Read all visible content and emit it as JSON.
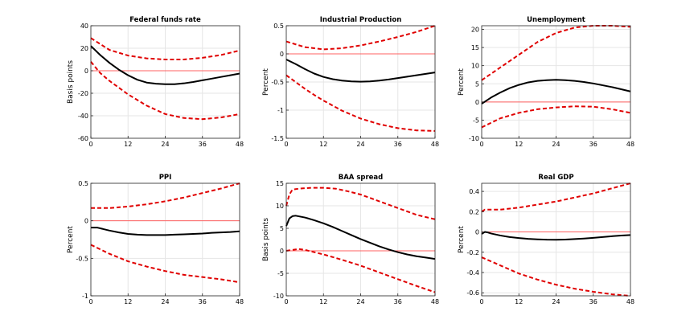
{
  "chart_data": [
    {
      "type": "line",
      "title": "Federal funds rate",
      "ylabel": "Basis points",
      "xlabel": "",
      "xlim": [
        0,
        48
      ],
      "xticks": [
        0,
        12,
        24,
        36,
        48
      ],
      "xtick_labels": [
        "0",
        "12",
        "24",
        "36",
        "48"
      ],
      "ylim": [
        -60,
        40
      ],
      "yticks": [
        -60,
        -40,
        -20,
        0,
        20,
        40
      ],
      "ytick_labels": [
        "-60",
        "-40",
        "-20",
        "0",
        "20",
        "40"
      ],
      "grid": true,
      "series": [
        {
          "name": "Upper band",
          "style": "dashed",
          "color": "#e00000",
          "x": [
            0,
            6,
            12,
            18,
            24,
            30,
            36,
            42,
            48
          ],
          "values": [
            29,
            18.5,
            13.5,
            11,
            10,
            10,
            11.5,
            14,
            18
          ]
        },
        {
          "name": "Response",
          "style": "solid",
          "color": "#000000",
          "x": [
            0,
            3,
            6,
            9,
            12,
            15,
            18,
            21,
            24,
            27,
            30,
            33,
            36,
            39,
            42,
            45,
            48
          ],
          "values": [
            22,
            14,
            7,
            1,
            -4,
            -8,
            -10.5,
            -11.5,
            -12,
            -12,
            -11.2,
            -10,
            -8.5,
            -7,
            -5.5,
            -4,
            -2.5
          ]
        },
        {
          "name": "Lower band",
          "style": "dashed",
          "color": "#e00000",
          "x": [
            0,
            3,
            6,
            9,
            12,
            18,
            24,
            30,
            36,
            42,
            48
          ],
          "values": [
            8,
            -2,
            -9,
            -15,
            -21,
            -31,
            -38.5,
            -42,
            -43,
            -41.5,
            -38.5
          ]
        },
        {
          "name": "Zero line",
          "style": "solid",
          "color": "#ff6060",
          "x": [
            0,
            48
          ],
          "values": [
            0,
            0
          ]
        }
      ]
    },
    {
      "type": "line",
      "title": "Industrial Production",
      "ylabel": "Percent",
      "xlabel": "",
      "xlim": [
        0,
        48
      ],
      "xticks": [
        0,
        12,
        24,
        36,
        48
      ],
      "xtick_labels": [
        "0",
        "12",
        "24",
        "36",
        "48"
      ],
      "ylim": [
        -1.5,
        0.5
      ],
      "yticks": [
        -1.5,
        -1,
        -0.5,
        0,
        0.5
      ],
      "ytick_labels": [
        "-1.5",
        "-1",
        "-0.5",
        "0",
        "0.5"
      ],
      "grid": true,
      "series": [
        {
          "name": "Upper band",
          "style": "dashed",
          "color": "#e00000",
          "x": [
            0,
            6,
            12,
            18,
            24,
            30,
            36,
            42,
            48
          ],
          "values": [
            0.22,
            0.12,
            0.08,
            0.1,
            0.15,
            0.22,
            0.3,
            0.39,
            0.5
          ]
        },
        {
          "name": "Response",
          "style": "solid",
          "color": "#000000",
          "x": [
            0,
            3,
            6,
            9,
            12,
            15,
            18,
            21,
            24,
            27,
            30,
            33,
            36,
            39,
            42,
            45,
            48
          ],
          "values": [
            -0.1,
            -0.18,
            -0.27,
            -0.35,
            -0.41,
            -0.45,
            -0.475,
            -0.49,
            -0.495,
            -0.49,
            -0.475,
            -0.455,
            -0.43,
            -0.405,
            -0.38,
            -0.355,
            -0.33
          ]
        },
        {
          "name": "Lower band",
          "style": "dashed",
          "color": "#e00000",
          "x": [
            0,
            3,
            6,
            9,
            12,
            18,
            24,
            30,
            36,
            42,
            48
          ],
          "values": [
            -0.38,
            -0.5,
            -0.62,
            -0.73,
            -0.83,
            -1.01,
            -1.15,
            -1.25,
            -1.32,
            -1.36,
            -1.37
          ]
        },
        {
          "name": "Zero line",
          "style": "solid",
          "color": "#ff6060",
          "x": [
            0,
            48
          ],
          "values": [
            0,
            0
          ]
        }
      ]
    },
    {
      "type": "line",
      "title": "Unemployment",
      "ylabel": "Percent",
      "xlabel": "",
      "xlim": [
        0,
        48
      ],
      "xticks": [
        0,
        12,
        24,
        36,
        48
      ],
      "xtick_labels": [
        "0",
        "12",
        "24",
        "36",
        "48"
      ],
      "ylim": [
        -10,
        21
      ],
      "yticks": [
        -10,
        -5,
        0,
        5,
        10,
        15,
        20
      ],
      "ytick_labels": [
        "-10",
        "-5",
        "0",
        "5",
        "10",
        "15",
        "20"
      ],
      "grid": true,
      "series": [
        {
          "name": "Upper band",
          "style": "dashed",
          "color": "#e00000",
          "x": [
            0,
            6,
            12,
            18,
            24,
            30,
            36,
            42,
            48
          ],
          "values": [
            6,
            9.5,
            13,
            16.5,
            19,
            20.5,
            21,
            21,
            20.7
          ]
        },
        {
          "name": "Response",
          "style": "solid",
          "color": "#000000",
          "x": [
            0,
            3,
            6,
            9,
            12,
            15,
            18,
            21,
            24,
            27,
            30,
            33,
            36,
            39,
            42,
            45,
            48
          ],
          "values": [
            -0.5,
            1.2,
            2.6,
            3.8,
            4.7,
            5.4,
            5.8,
            6,
            6.1,
            6,
            5.8,
            5.5,
            5.1,
            4.6,
            4.1,
            3.5,
            2.9
          ]
        },
        {
          "name": "Lower band",
          "style": "dashed",
          "color": "#e00000",
          "x": [
            0,
            6,
            12,
            18,
            24,
            30,
            36,
            42,
            48
          ],
          "values": [
            -7,
            -4.5,
            -3,
            -2,
            -1.5,
            -1.2,
            -1.3,
            -2,
            -3
          ]
        },
        {
          "name": "Zero line",
          "style": "solid",
          "color": "#ff6060",
          "x": [
            0,
            48
          ],
          "values": [
            0,
            0
          ]
        }
      ]
    },
    {
      "type": "line",
      "title": "PPI",
      "ylabel": "Percent",
      "xlabel": "",
      "xlim": [
        0,
        48
      ],
      "xticks": [
        0,
        12,
        24,
        36,
        48
      ],
      "xtick_labels": [
        "0",
        "12",
        "24",
        "36",
        "48"
      ],
      "ylim": [
        -1,
        0.5
      ],
      "yticks": [
        -1,
        -0.5,
        0,
        0.5
      ],
      "ytick_labels": [
        "-1",
        "-0.5",
        "0",
        "0.5"
      ],
      "grid": true,
      "series": [
        {
          "name": "Upper band",
          "style": "dashed",
          "color": "#e00000",
          "x": [
            0,
            6,
            12,
            18,
            24,
            30,
            36,
            42,
            48
          ],
          "values": [
            0.17,
            0.17,
            0.19,
            0.22,
            0.26,
            0.31,
            0.37,
            0.43,
            0.5
          ]
        },
        {
          "name": "Response",
          "style": "solid",
          "color": "#000000",
          "x": [
            0,
            2,
            4,
            6,
            9,
            12,
            15,
            18,
            21,
            24,
            27,
            30,
            33,
            36,
            39,
            42,
            45,
            48
          ],
          "values": [
            -0.09,
            -0.09,
            -0.11,
            -0.13,
            -0.155,
            -0.175,
            -0.185,
            -0.19,
            -0.19,
            -0.19,
            -0.185,
            -0.18,
            -0.175,
            -0.17,
            -0.16,
            -0.155,
            -0.15,
            -0.14
          ]
        },
        {
          "name": "Lower band",
          "style": "dashed",
          "color": "#e00000",
          "x": [
            0,
            3,
            6,
            9,
            12,
            18,
            24,
            30,
            36,
            42,
            48
          ],
          "values": [
            -0.32,
            -0.38,
            -0.44,
            -0.49,
            -0.54,
            -0.61,
            -0.67,
            -0.72,
            -0.75,
            -0.78,
            -0.82
          ]
        },
        {
          "name": "Zero line",
          "style": "solid",
          "color": "#ff6060",
          "x": [
            0,
            48
          ],
          "values": [
            0,
            0
          ]
        }
      ]
    },
    {
      "type": "line",
      "title": "BAA spread",
      "ylabel": "Basis points",
      "xlabel": "",
      "xlim": [
        0,
        48
      ],
      "xticks": [
        0,
        12,
        24,
        36,
        48
      ],
      "xtick_labels": [
        "0",
        "12",
        "24",
        "36",
        "48"
      ],
      "ylim": [
        -10,
        15
      ],
      "yticks": [
        -10,
        -5,
        0,
        5,
        10,
        15
      ],
      "ytick_labels": [
        "-10",
        "-5",
        "0",
        "5",
        "10",
        "15"
      ],
      "grid": true,
      "series": [
        {
          "name": "Upper band",
          "style": "dashed",
          "color": "#e00000",
          "x": [
            0,
            1,
            2,
            4,
            8,
            12,
            16,
            20,
            24,
            30,
            36,
            42,
            48
          ],
          "values": [
            10,
            12.5,
            13.6,
            13.8,
            14,
            14,
            13.8,
            13.2,
            12.5,
            11,
            9.5,
            8,
            7
          ]
        },
        {
          "name": "Response",
          "style": "solid",
          "color": "#000000",
          "x": [
            0,
            1,
            2,
            3,
            6,
            9,
            12,
            15,
            18,
            21,
            24,
            27,
            30,
            33,
            36,
            39,
            42,
            45,
            48
          ],
          "values": [
            5.5,
            7.2,
            7.7,
            7.8,
            7.4,
            6.8,
            6.1,
            5.3,
            4.4,
            3.5,
            2.6,
            1.8,
            1,
            0.3,
            -0.3,
            -0.8,
            -1.2,
            -1.5,
            -1.8
          ]
        },
        {
          "name": "Lower band",
          "style": "dashed",
          "color": "#e00000",
          "x": [
            0,
            2,
            4,
            6,
            9,
            12,
            18,
            24,
            30,
            36,
            42,
            48
          ],
          "values": [
            0,
            0.2,
            0.4,
            0.2,
            -0.3,
            -0.8,
            -2,
            -3.3,
            -4.8,
            -6.3,
            -7.8,
            -9.2
          ]
        },
        {
          "name": "Zero line",
          "style": "solid",
          "color": "#ff6060",
          "x": [
            0,
            48
          ],
          "values": [
            0,
            0
          ]
        }
      ]
    },
    {
      "type": "line",
      "title": "Real GDP",
      "ylabel": "Percent",
      "xlabel": "",
      "xlim": [
        0,
        48
      ],
      "xticks": [
        0,
        12,
        24,
        36,
        48
      ],
      "xtick_labels": [
        "0",
        "12",
        "24",
        "36",
        "48"
      ],
      "ylim": [
        -0.63,
        0.48
      ],
      "yticks": [
        -0.6,
        -0.4,
        -0.2,
        0,
        0.2,
        0.4
      ],
      "ytick_labels": [
        "-0.6",
        "-0.4",
        "-0.2",
        "0",
        "0.2",
        "0.4"
      ],
      "grid": true,
      "series": [
        {
          "name": "Upper band",
          "style": "dashed",
          "color": "#e00000",
          "x": [
            0,
            1,
            3,
            6,
            12,
            18,
            24,
            30,
            36,
            42,
            48
          ],
          "values": [
            0.2,
            0.22,
            0.22,
            0.22,
            0.24,
            0.27,
            0.3,
            0.34,
            0.38,
            0.43,
            0.48
          ]
        },
        {
          "name": "Response",
          "style": "solid",
          "color": "#000000",
          "x": [
            0,
            1,
            2,
            3,
            6,
            9,
            12,
            15,
            18,
            21,
            24,
            27,
            30,
            33,
            36,
            39,
            42,
            45,
            48
          ],
          "values": [
            -0.02,
            0,
            -0.005,
            -0.015,
            -0.035,
            -0.05,
            -0.06,
            -0.068,
            -0.073,
            -0.076,
            -0.077,
            -0.075,
            -0.07,
            -0.065,
            -0.058,
            -0.05,
            -0.042,
            -0.035,
            -0.03
          ]
        },
        {
          "name": "Lower band",
          "style": "dashed",
          "color": "#e00000",
          "x": [
            0,
            3,
            6,
            9,
            12,
            18,
            24,
            30,
            36,
            42,
            48
          ],
          "values": [
            -0.25,
            -0.29,
            -0.33,
            -0.37,
            -0.41,
            -0.47,
            -0.52,
            -0.56,
            -0.59,
            -0.615,
            -0.63
          ]
        },
        {
          "name": "Zero line",
          "style": "solid",
          "color": "#ff6060",
          "x": [
            0,
            48
          ],
          "values": [
            0,
            0
          ]
        }
      ]
    }
  ]
}
